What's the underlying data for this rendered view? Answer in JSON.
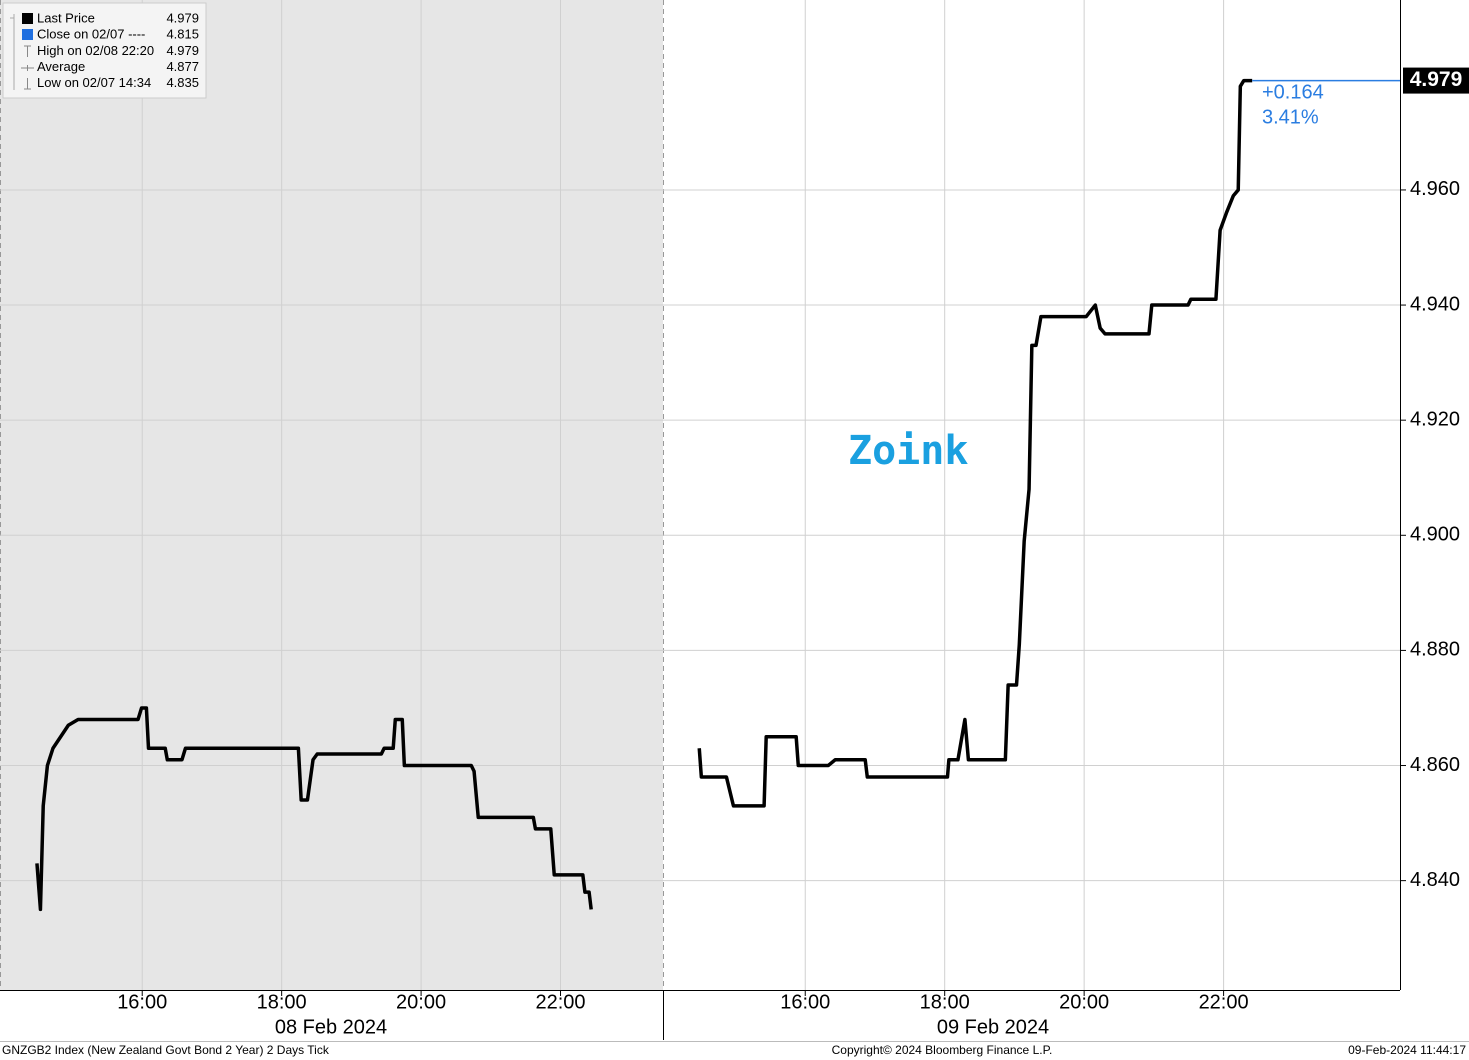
{
  "chart_data": {
    "type": "line",
    "legend": [
      {
        "name": "Last Price",
        "value": 4.979
      },
      {
        "name": "Close on 02/07 ----",
        "value": 4.815
      },
      {
        "name": "High on 02/08 22:20",
        "value": 4.979
      },
      {
        "name": "Average",
        "value": 4.877
      },
      {
        "name": "Low on 02/07 14:34",
        "value": 4.835
      }
    ],
    "color": "#000000",
    "ylim": [
      4.821,
      4.993
    ],
    "yticks": [
      {
        "value": 4.84,
        "label": "4.840"
      },
      {
        "value": 4.86,
        "label": "4.860"
      },
      {
        "value": 4.88,
        "label": "4.880"
      },
      {
        "value": 4.9,
        "label": "4.900"
      },
      {
        "value": 4.92,
        "label": "4.920"
      },
      {
        "value": 4.94,
        "label": "4.940"
      },
      {
        "value": 4.96,
        "label": "4.960"
      }
    ],
    "grid": true,
    "panels": [
      {
        "date": "08 Feb 2024",
        "xlim": [
          13.96,
          23.47
        ],
        "xticks": [
          {
            "value": 16,
            "label": "16:00"
          },
          {
            "value": 18,
            "label": "18:00"
          },
          {
            "value": 20,
            "label": "20:00"
          },
          {
            "value": 22,
            "label": "22:00"
          }
        ],
        "x": [
          14.49,
          14.54,
          14.58,
          14.64,
          14.72,
          14.94,
          15.08,
          15.94,
          15.99,
          16.06,
          16.09,
          16.33,
          16.36,
          16.57,
          16.62,
          18.24,
          18.28,
          18.37,
          18.45,
          18.51,
          19.43,
          19.47,
          19.6,
          19.63,
          19.73,
          19.76,
          20.72,
          20.76,
          20.82,
          21.61,
          21.64,
          21.86,
          21.91,
          22.32,
          22.35,
          22.41,
          22.44
        ],
        "values": [
          4.843,
          4.835,
          4.853,
          4.86,
          4.863,
          4.867,
          4.868,
          4.868,
          4.87,
          4.87,
          4.863,
          4.863,
          4.861,
          4.861,
          4.863,
          4.863,
          4.854,
          4.854,
          4.861,
          4.862,
          4.862,
          4.863,
          4.863,
          4.868,
          4.868,
          4.86,
          4.86,
          4.859,
          4.851,
          4.851,
          4.849,
          4.849,
          4.841,
          4.841,
          4.838,
          4.838,
          4.835
        ]
      },
      {
        "date": "09 Feb 2024",
        "xlim": [
          13.96,
          24.53
        ],
        "xticks": [
          {
            "value": 16,
            "label": "16:00"
          },
          {
            "value": 18,
            "label": "18:00"
          },
          {
            "value": 20,
            "label": "20:00"
          },
          {
            "value": 22,
            "label": "22:00"
          }
        ],
        "x": [
          14.48,
          14.51,
          14.87,
          14.97,
          15.41,
          15.44,
          15.87,
          15.9,
          16.33,
          16.43,
          16.86,
          16.89,
          18.04,
          18.06,
          18.19,
          18.29,
          18.34,
          18.87,
          18.91,
          19.03,
          19.07,
          19.14,
          19.21,
          19.25,
          19.31,
          19.38,
          20.03,
          20.16,
          20.23,
          20.3,
          20.93,
          20.97,
          21.49,
          21.53,
          21.89,
          21.95,
          22.04,
          22.14,
          22.21,
          22.24,
          22.29,
          22.41
        ],
        "values": [
          4.863,
          4.858,
          4.858,
          4.853,
          4.853,
          4.865,
          4.865,
          4.86,
          4.86,
          4.861,
          4.861,
          4.858,
          4.858,
          4.861,
          4.861,
          4.868,
          4.861,
          4.861,
          4.874,
          4.874,
          4.881,
          4.899,
          4.908,
          4.933,
          4.933,
          4.938,
          4.938,
          4.94,
          4.936,
          4.935,
          4.935,
          4.94,
          4.94,
          4.941,
          4.941,
          4.953,
          4.956,
          4.959,
          4.96,
          4.978,
          4.979,
          4.979
        ]
      }
    ],
    "last_price": 4.979,
    "last_price_color": "#2a7de1",
    "change": "+0.164",
    "change_pct": "3.41%",
    "watermark": "Zoink",
    "footer_left": "GNZGB2 Index (New Zealand Govt Bond 2 Year) 2 Days  Tick",
    "footer_center": "Copyright© 2024 Bloomberg Finance L.P.",
    "footer_right": "09-Feb-2024 11:44:17"
  }
}
